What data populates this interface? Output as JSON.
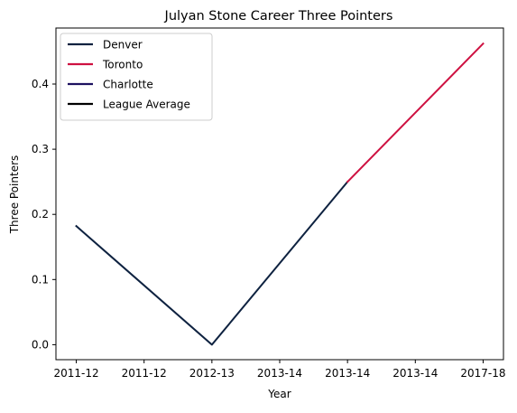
{
  "chart_data": {
    "type": "line",
    "title": "Julyan Stone Career Three Pointers",
    "xlabel": "Year",
    "ylabel": "Three Pointers",
    "categories": [
      "2011-12",
      "2011-12",
      "2012-13",
      "2013-14",
      "2013-14",
      "2013-14",
      "2017-18"
    ],
    "ylim": [
      -0.023,
      0.486
    ],
    "yticks": [
      0.0,
      0.1,
      0.2,
      0.3,
      0.4
    ],
    "ytick_labels": [
      "0.0",
      "0.1",
      "0.2",
      "0.3",
      "0.4"
    ],
    "grid": false,
    "legend_position": "top-left",
    "series": [
      {
        "name": "Denver",
        "color": "#0E2240",
        "points": [
          {
            "x": 0,
            "y": 0.182
          },
          {
            "x": 2,
            "y": 0.0
          },
          {
            "x": 4,
            "y": 0.25
          }
        ]
      },
      {
        "name": "Toronto",
        "color": "#CE1141",
        "points": [
          {
            "x": 4,
            "y": 0.25
          },
          {
            "x": 6,
            "y": 0.462
          }
        ]
      },
      {
        "name": "Charlotte",
        "color": "#1D1160",
        "points": []
      },
      {
        "name": "League Average",
        "color": "#000000",
        "points": []
      }
    ]
  }
}
